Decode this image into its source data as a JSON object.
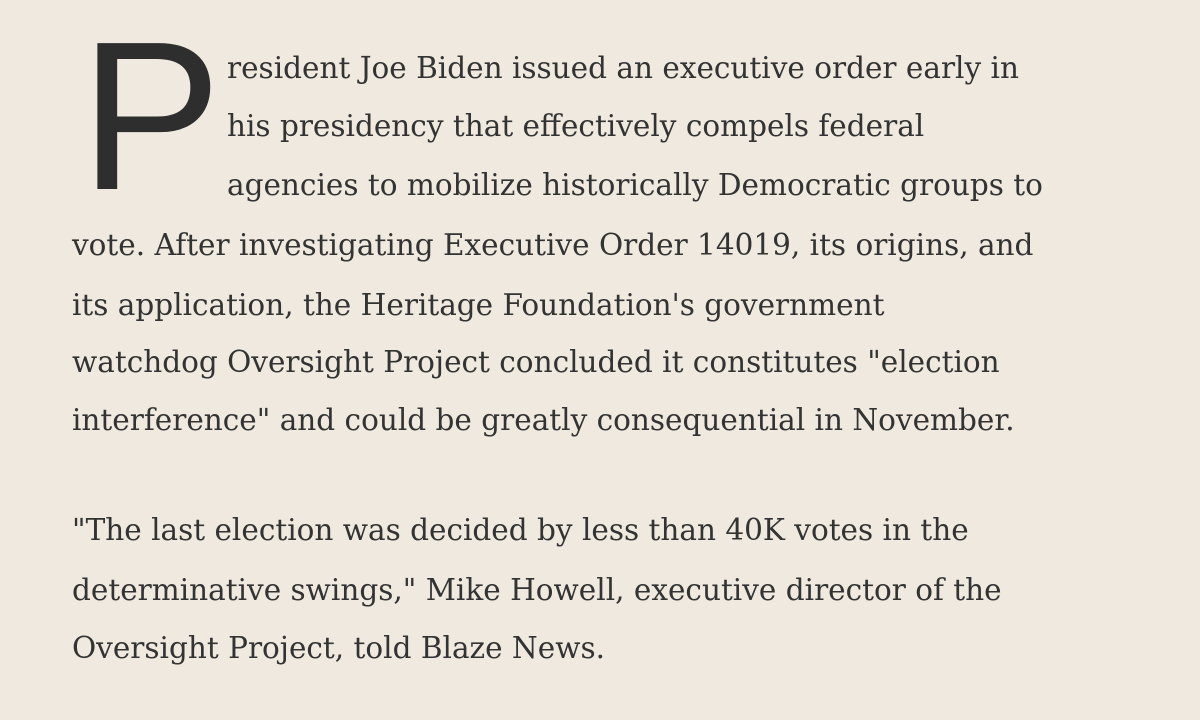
{
  "article": {
    "paragraphs": [
      {
        "drop_cap": "P",
        "lines": [
          "resident Joe Biden issued an executive order early in",
          "his presidency that effectively compels federal",
          "agencies to mobilize historically Democratic groups to",
          "vote. After investigating Executive Order 14019, its origins, and",
          "its application, the Heritage Foundation's government",
          "watchdog Oversight Project concluded it constitutes \"election",
          "interference\" and could be greatly consequential in November."
        ]
      },
      {
        "lines": [
          "\"The last election was decided by less than 40K votes in the",
          "determinative swings,\" Mike Howell, executive director of the",
          "Oversight Project, told Blaze News."
        ]
      }
    ]
  }
}
